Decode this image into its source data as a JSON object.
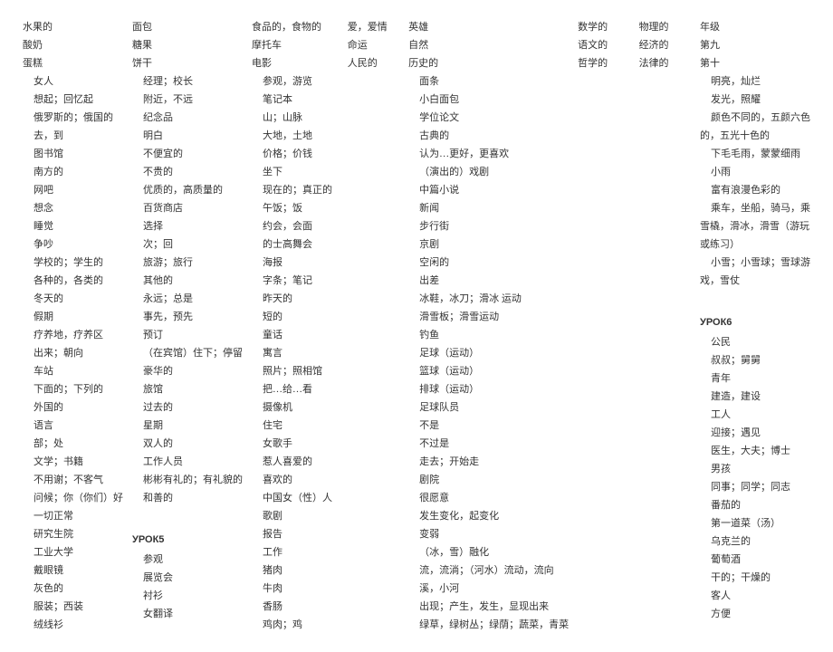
{
  "cols": [
    {
      "items": [
        {
          "t": "水果的",
          "i": 0
        },
        {
          "t": "酸奶",
          "i": 0
        },
        {
          "t": "蛋糕",
          "i": 0
        },
        {
          "t": "女人",
          "i": 1
        },
        {
          "t": "想起；回忆起",
          "i": 1
        },
        {
          "t": "俄罗斯的；俄国的",
          "i": 1
        },
        {
          "t": "去，到",
          "i": 1
        },
        {
          "t": "图书馆",
          "i": 1
        },
        {
          "t": "南方的",
          "i": 1
        },
        {
          "t": "网吧",
          "i": 1
        },
        {
          "t": "想念",
          "i": 1
        },
        {
          "t": "睡觉",
          "i": 1
        },
        {
          "t": "争吵",
          "i": 1
        },
        {
          "t": "学校的；学生的",
          "i": 1
        },
        {
          "t": "各种的，各类的",
          "i": 1
        },
        {
          "t": "冬天的",
          "i": 1
        },
        {
          "t": "假期",
          "i": 1
        },
        {
          "t": "疗养地，疗养区",
          "i": 1
        },
        {
          "t": "出来；朝向",
          "i": 1
        },
        {
          "t": "车站",
          "i": 1
        },
        {
          "t": "下面的；下列的",
          "i": 1
        },
        {
          "t": "外国的",
          "i": 1
        },
        {
          "t": "语言",
          "i": 1
        },
        {
          "t": "部；处",
          "i": 1
        },
        {
          "t": "文学；书籍",
          "i": 1
        },
        {
          "t": "不用谢；不客气",
          "i": 1
        },
        {
          "t": "问候；你（你们）好",
          "i": 1
        },
        {
          "t": "一切正常",
          "i": 1
        },
        {
          "t": "研究生院",
          "i": 1
        },
        {
          "t": "工业大学",
          "i": 1
        },
        {
          "t": "戴眼镜",
          "i": 1
        },
        {
          "t": "灰色的",
          "i": 1
        },
        {
          "t": "服装；西装",
          "i": 1
        },
        {
          "t": "绒线衫",
          "i": 1
        }
      ]
    },
    {
      "items": [
        {
          "t": "面包",
          "i": 0
        },
        {
          "t": "糖果",
          "i": 0
        },
        {
          "t": "饼干",
          "i": 0
        },
        {
          "t": "经理；校长",
          "i": 1
        },
        {
          "t": "附近，不远",
          "i": 1
        },
        {
          "t": "纪念品",
          "i": 1
        },
        {
          "t": "明白",
          "i": 1
        },
        {
          "t": "不便宜的",
          "i": 1
        },
        {
          "t": "不贵的",
          "i": 1
        },
        {
          "t": "优质的，高质量的",
          "i": 1
        },
        {
          "t": "百货商店",
          "i": 1
        },
        {
          "t": "选择",
          "i": 1
        },
        {
          "t": "次；回",
          "i": 1
        },
        {
          "t": "旅游；旅行",
          "i": 1
        },
        {
          "t": "其他的",
          "i": 1
        },
        {
          "t": "永远；总是",
          "i": 1
        },
        {
          "t": "事先，预先",
          "i": 1
        },
        {
          "t": "预订",
          "i": 1
        },
        {
          "t": "（在宾馆）住下；停留",
          "i": 1
        },
        {
          "t": "豪华的",
          "i": 1
        },
        {
          "t": "旅馆",
          "i": 1
        },
        {
          "t": "过去的",
          "i": 1
        },
        {
          "t": "星期",
          "i": 1
        },
        {
          "t": "双人的",
          "i": 1
        },
        {
          "t": "工作人员",
          "i": 1
        },
        {
          "t": "彬彬有礼的；有礼貌的",
          "i": 1
        },
        {
          "t": "和善的",
          "i": 1
        },
        {
          "t": "",
          "i": 1
        },
        {
          "t": "УРОК5",
          "i": 0,
          "h": true
        },
        {
          "t": "参观",
          "i": 1
        },
        {
          "t": "展览会",
          "i": 1
        },
        {
          "t": "衬衫",
          "i": 1
        },
        {
          "t": "女翻译",
          "i": 1
        }
      ]
    },
    {
      "items": [
        {
          "t": "食品的，食物的",
          "i": 0
        },
        {
          "t": "摩托车",
          "i": 0
        },
        {
          "t": "电影",
          "i": 0
        },
        {
          "t": "参观，游览",
          "i": 1
        },
        {
          "t": "笔记本",
          "i": 1
        },
        {
          "t": "山；山脉",
          "i": 1
        },
        {
          "t": "大地，土地",
          "i": 1
        },
        {
          "t": "价格；价钱",
          "i": 1
        },
        {
          "t": "坐下",
          "i": 1
        },
        {
          "t": "现在的；真正的",
          "i": 1
        },
        {
          "t": "午饭；饭",
          "i": 1
        },
        {
          "t": "约会，会面",
          "i": 1
        },
        {
          "t": "的士高舞会",
          "i": 1
        },
        {
          "t": "海报",
          "i": 1
        },
        {
          "t": "字条；笔记",
          "i": 1
        },
        {
          "t": "昨天的",
          "i": 1
        },
        {
          "t": "短的",
          "i": 1
        },
        {
          "t": "童话",
          "i": 1
        },
        {
          "t": "寓言",
          "i": 1
        },
        {
          "t": "照片；照相馆",
          "i": 1
        },
        {
          "t": "把…给…看",
          "i": 1
        },
        {
          "t": "摄像机",
          "i": 1
        },
        {
          "t": "住宅",
          "i": 1
        },
        {
          "t": "女歌手",
          "i": 1
        },
        {
          "t": "惹人喜爱的",
          "i": 1
        },
        {
          "t": "喜欢的",
          "i": 1
        },
        {
          "t": "中国女（性）人",
          "i": 1
        },
        {
          "t": "歌剧",
          "i": 1
        },
        {
          "t": "报告",
          "i": 1
        },
        {
          "t": "工作",
          "i": 1
        },
        {
          "t": "猪肉",
          "i": 1
        },
        {
          "t": "牛肉",
          "i": 1
        },
        {
          "t": "香肠",
          "i": 1
        },
        {
          "t": "鸡肉；鸡",
          "i": 1
        }
      ]
    },
    {
      "items": [
        {
          "t": "爱，爱情",
          "i": 0
        },
        {
          "t": "命运",
          "i": 0
        },
        {
          "t": "人民的",
          "i": 0
        }
      ]
    },
    {
      "items": [
        {
          "t": "英雄",
          "i": 0
        },
        {
          "t": "自然",
          "i": 0
        },
        {
          "t": "历史的",
          "i": 0
        },
        {
          "t": "面条",
          "i": 1
        },
        {
          "t": "小白面包",
          "i": 1
        },
        {
          "t": "学位论文",
          "i": 1
        },
        {
          "t": "古典的",
          "i": 1
        },
        {
          "t": "认为…更好，更喜欢",
          "i": 1
        },
        {
          "t": "（演出的）戏剧",
          "i": 1
        },
        {
          "t": "中篇小说",
          "i": 1
        },
        {
          "t": "新闻",
          "i": 1
        },
        {
          "t": "步行街",
          "i": 1
        },
        {
          "t": "京剧",
          "i": 1
        },
        {
          "t": "空闲的",
          "i": 1
        },
        {
          "t": "出差",
          "i": 1
        },
        {
          "t": "冰鞋，冰刀；滑冰 运动",
          "i": 1
        },
        {
          "t": "滑雪板；滑雪运动",
          "i": 1
        },
        {
          "t": "钓鱼",
          "i": 1
        },
        {
          "t": "足球（运动）",
          "i": 1
        },
        {
          "t": "篮球（运动）",
          "i": 1
        },
        {
          "t": "排球（运动）",
          "i": 1
        },
        {
          "t": "足球队员",
          "i": 1
        },
        {
          "t": "不是",
          "i": 1
        },
        {
          "t": "不过是",
          "i": 1
        },
        {
          "t": "走去；开始走",
          "i": 1
        },
        {
          "t": "剧院",
          "i": 1
        },
        {
          "t": "很愿意",
          "i": 1
        },
        {
          "t": "发生变化，起变化",
          "i": 1
        },
        {
          "t": "变弱",
          "i": 1
        },
        {
          "t": "（冰，雪）融化",
          "i": 1
        },
        {
          "t": "流，流淌；（河水）流动，流向",
          "i": 1
        },
        {
          "t": "溪，小河",
          "i": 1
        },
        {
          "t": "出现；产生，发生，显现出来",
          "i": 1
        },
        {
          "t": "绿草，绿树丛；绿荫；蔬菜，青菜",
          "i": 1
        }
      ]
    },
    {
      "items": [
        {
          "t": "数学的",
          "i": 0
        },
        {
          "t": "语文的",
          "i": 0
        },
        {
          "t": "哲学的",
          "i": 0
        }
      ]
    },
    {
      "items": [
        {
          "t": "物理的",
          "i": 0
        },
        {
          "t": "经济的",
          "i": 0
        },
        {
          "t": "法律的",
          "i": 0
        }
      ]
    },
    {
      "items": [
        {
          "t": "年级",
          "i": 0
        },
        {
          "t": "第九",
          "i": 0
        },
        {
          "t": "第十",
          "i": 0
        },
        {
          "t": "明亮，灿烂",
          "i": 1
        },
        {
          "t": "发光，照耀",
          "i": 1
        },
        {
          "t": "颜色不同的，五颜六色",
          "i": 1
        },
        {
          "t": "的，五光十色的",
          "i": 0
        },
        {
          "t": "下毛毛雨，蒙蒙细雨",
          "i": 1
        },
        {
          "t": "小雨",
          "i": 1
        },
        {
          "t": "富有浪漫色彩的",
          "i": 1
        },
        {
          "t": "乘车，坐船，骑马，乘",
          "i": 1
        },
        {
          "t": "雪橇，滑冰，滑雪（游玩",
          "i": 0
        },
        {
          "t": "或练习）",
          "i": 0
        },
        {
          "t": "小雪；小雪球；雪球游",
          "i": 1
        },
        {
          "t": "戏，雪仗",
          "i": 0
        },
        {
          "t": "",
          "i": 1
        },
        {
          "t": "УРОК6",
          "i": 0,
          "h": true
        },
        {
          "t": "公民",
          "i": 1
        },
        {
          "t": "叔叔；舅舅",
          "i": 1
        },
        {
          "t": "青年",
          "i": 1
        },
        {
          "t": "建造，建设",
          "i": 1
        },
        {
          "t": "工人",
          "i": 1
        },
        {
          "t": "迎接；遇见",
          "i": 1
        },
        {
          "t": "医生，大夫；博士",
          "i": 1
        },
        {
          "t": "男孩",
          "i": 1
        },
        {
          "t": "同事；同学；同志",
          "i": 1
        },
        {
          "t": "番茄的",
          "i": 1
        },
        {
          "t": "第一道菜（汤）",
          "i": 1
        },
        {
          "t": "乌克兰的",
          "i": 1
        },
        {
          "t": "葡萄酒",
          "i": 1
        },
        {
          "t": "干的；干燥的",
          "i": 1
        },
        {
          "t": "客人",
          "i": 1
        },
        {
          "t": "方便",
          "i": 1
        }
      ]
    }
  ]
}
